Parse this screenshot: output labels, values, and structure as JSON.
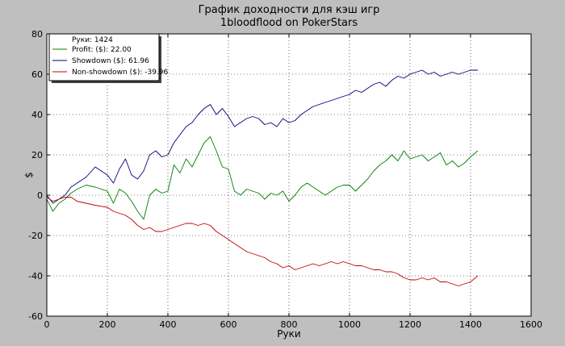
{
  "chart_data": {
    "type": "line",
    "title": "График доходности для кэш игр",
    "subtitle": "1bloodflood on PokerStars",
    "xlabel": "Руки",
    "ylabel": "$",
    "xlim": [
      0,
      1600
    ],
    "ylim": [
      -60,
      80
    ],
    "xticks": [
      0,
      200,
      400,
      600,
      800,
      1000,
      1200,
      1400,
      1600
    ],
    "yticks": [
      -60,
      -40,
      -20,
      0,
      20,
      40,
      60,
      80
    ],
    "grid": true,
    "legend": {
      "placement": "top-left",
      "header": "Руки: 1424"
    },
    "series": [
      {
        "name": "Profit: ($): 22.00",
        "color": "#007f00",
        "x": [
          0,
          20,
          40,
          60,
          80,
          100,
          130,
          160,
          200,
          220,
          240,
          260,
          280,
          300,
          320,
          340,
          360,
          380,
          400,
          420,
          440,
          460,
          480,
          500,
          520,
          540,
          560,
          580,
          600,
          620,
          640,
          660,
          680,
          700,
          720,
          740,
          760,
          780,
          800,
          820,
          840,
          860,
          880,
          900,
          920,
          940,
          960,
          980,
          1000,
          1020,
          1040,
          1060,
          1080,
          1100,
          1120,
          1140,
          1160,
          1180,
          1200,
          1220,
          1240,
          1260,
          1280,
          1300,
          1320,
          1340,
          1360,
          1380,
          1400,
          1424
        ],
        "values": [
          -2,
          -8,
          -4,
          -2,
          1,
          3,
          5,
          4,
          2,
          -4,
          3,
          1,
          -3,
          -8,
          -12,
          0,
          3,
          1,
          2,
          15,
          11,
          18,
          14,
          20,
          26,
          29,
          22,
          14,
          13,
          2,
          0,
          3,
          2,
          1,
          -2,
          1,
          0,
          2,
          -3,
          0,
          4,
          6,
          4,
          2,
          0,
          2,
          4,
          5,
          5,
          2,
          5,
          8,
          12,
          15,
          17,
          20,
          17,
          22,
          18,
          19,
          20,
          17,
          19,
          21,
          15,
          17,
          14,
          16,
          19,
          22
        ]
      },
      {
        "name": "Showdown ($): 61.96",
        "color": "#00007f",
        "x": [
          0,
          20,
          40,
          60,
          80,
          100,
          130,
          160,
          200,
          220,
          240,
          260,
          280,
          300,
          320,
          340,
          360,
          380,
          400,
          420,
          440,
          460,
          480,
          500,
          520,
          540,
          560,
          580,
          600,
          620,
          640,
          660,
          680,
          700,
          720,
          740,
          760,
          780,
          800,
          820,
          840,
          860,
          880,
          900,
          920,
          940,
          960,
          980,
          1000,
          1020,
          1040,
          1060,
          1080,
          1100,
          1120,
          1140,
          1160,
          1180,
          1200,
          1220,
          1240,
          1260,
          1280,
          1300,
          1320,
          1340,
          1360,
          1380,
          1400,
          1424
        ],
        "values": [
          0,
          -4,
          -2,
          0,
          4,
          6,
          9,
          14,
          10,
          6,
          13,
          18,
          10,
          8,
          12,
          20,
          22,
          19,
          20,
          26,
          30,
          34,
          36,
          40,
          43,
          45,
          40,
          43,
          39,
          34,
          36,
          38,
          39,
          38,
          35,
          36,
          34,
          38,
          36,
          37,
          40,
          42,
          44,
          45,
          46,
          47,
          48,
          49,
          50,
          52,
          51,
          53,
          55,
          56,
          54,
          57,
          59,
          58,
          60,
          61,
          62,
          60,
          61,
          59,
          60,
          61,
          60,
          61,
          62,
          62
        ]
      },
      {
        "name": "Non-showdown ($): -39.96",
        "color": "#bf0000",
        "x": [
          0,
          20,
          40,
          60,
          80,
          100,
          130,
          160,
          200,
          220,
          240,
          260,
          280,
          300,
          320,
          340,
          360,
          380,
          400,
          420,
          440,
          460,
          480,
          500,
          520,
          540,
          560,
          580,
          600,
          620,
          640,
          660,
          680,
          700,
          720,
          740,
          760,
          780,
          800,
          820,
          840,
          860,
          880,
          900,
          920,
          940,
          960,
          980,
          1000,
          1020,
          1040,
          1060,
          1080,
          1100,
          1120,
          1140,
          1160,
          1180,
          1200,
          1220,
          1240,
          1260,
          1280,
          1300,
          1320,
          1340,
          1360,
          1380,
          1400,
          1424
        ],
        "values": [
          -1,
          -3,
          -2,
          -1,
          -1,
          -3,
          -4,
          -5,
          -6,
          -8,
          -9,
          -10,
          -12,
          -15,
          -17,
          -16,
          -18,
          -18,
          -17,
          -16,
          -15,
          -14,
          -14,
          -15,
          -14,
          -15,
          -18,
          -20,
          -22,
          -24,
          -26,
          -28,
          -29,
          -30,
          -31,
          -33,
          -34,
          -36,
          -35,
          -37,
          -36,
          -35,
          -34,
          -35,
          -34,
          -33,
          -34,
          -33,
          -34,
          -35,
          -35,
          -36,
          -37,
          -37,
          -38,
          -38,
          -39,
          -41,
          -42,
          -42,
          -41,
          -42,
          -41,
          -43,
          -43,
          -44,
          -45,
          -44,
          -43,
          -40
        ]
      }
    ]
  }
}
